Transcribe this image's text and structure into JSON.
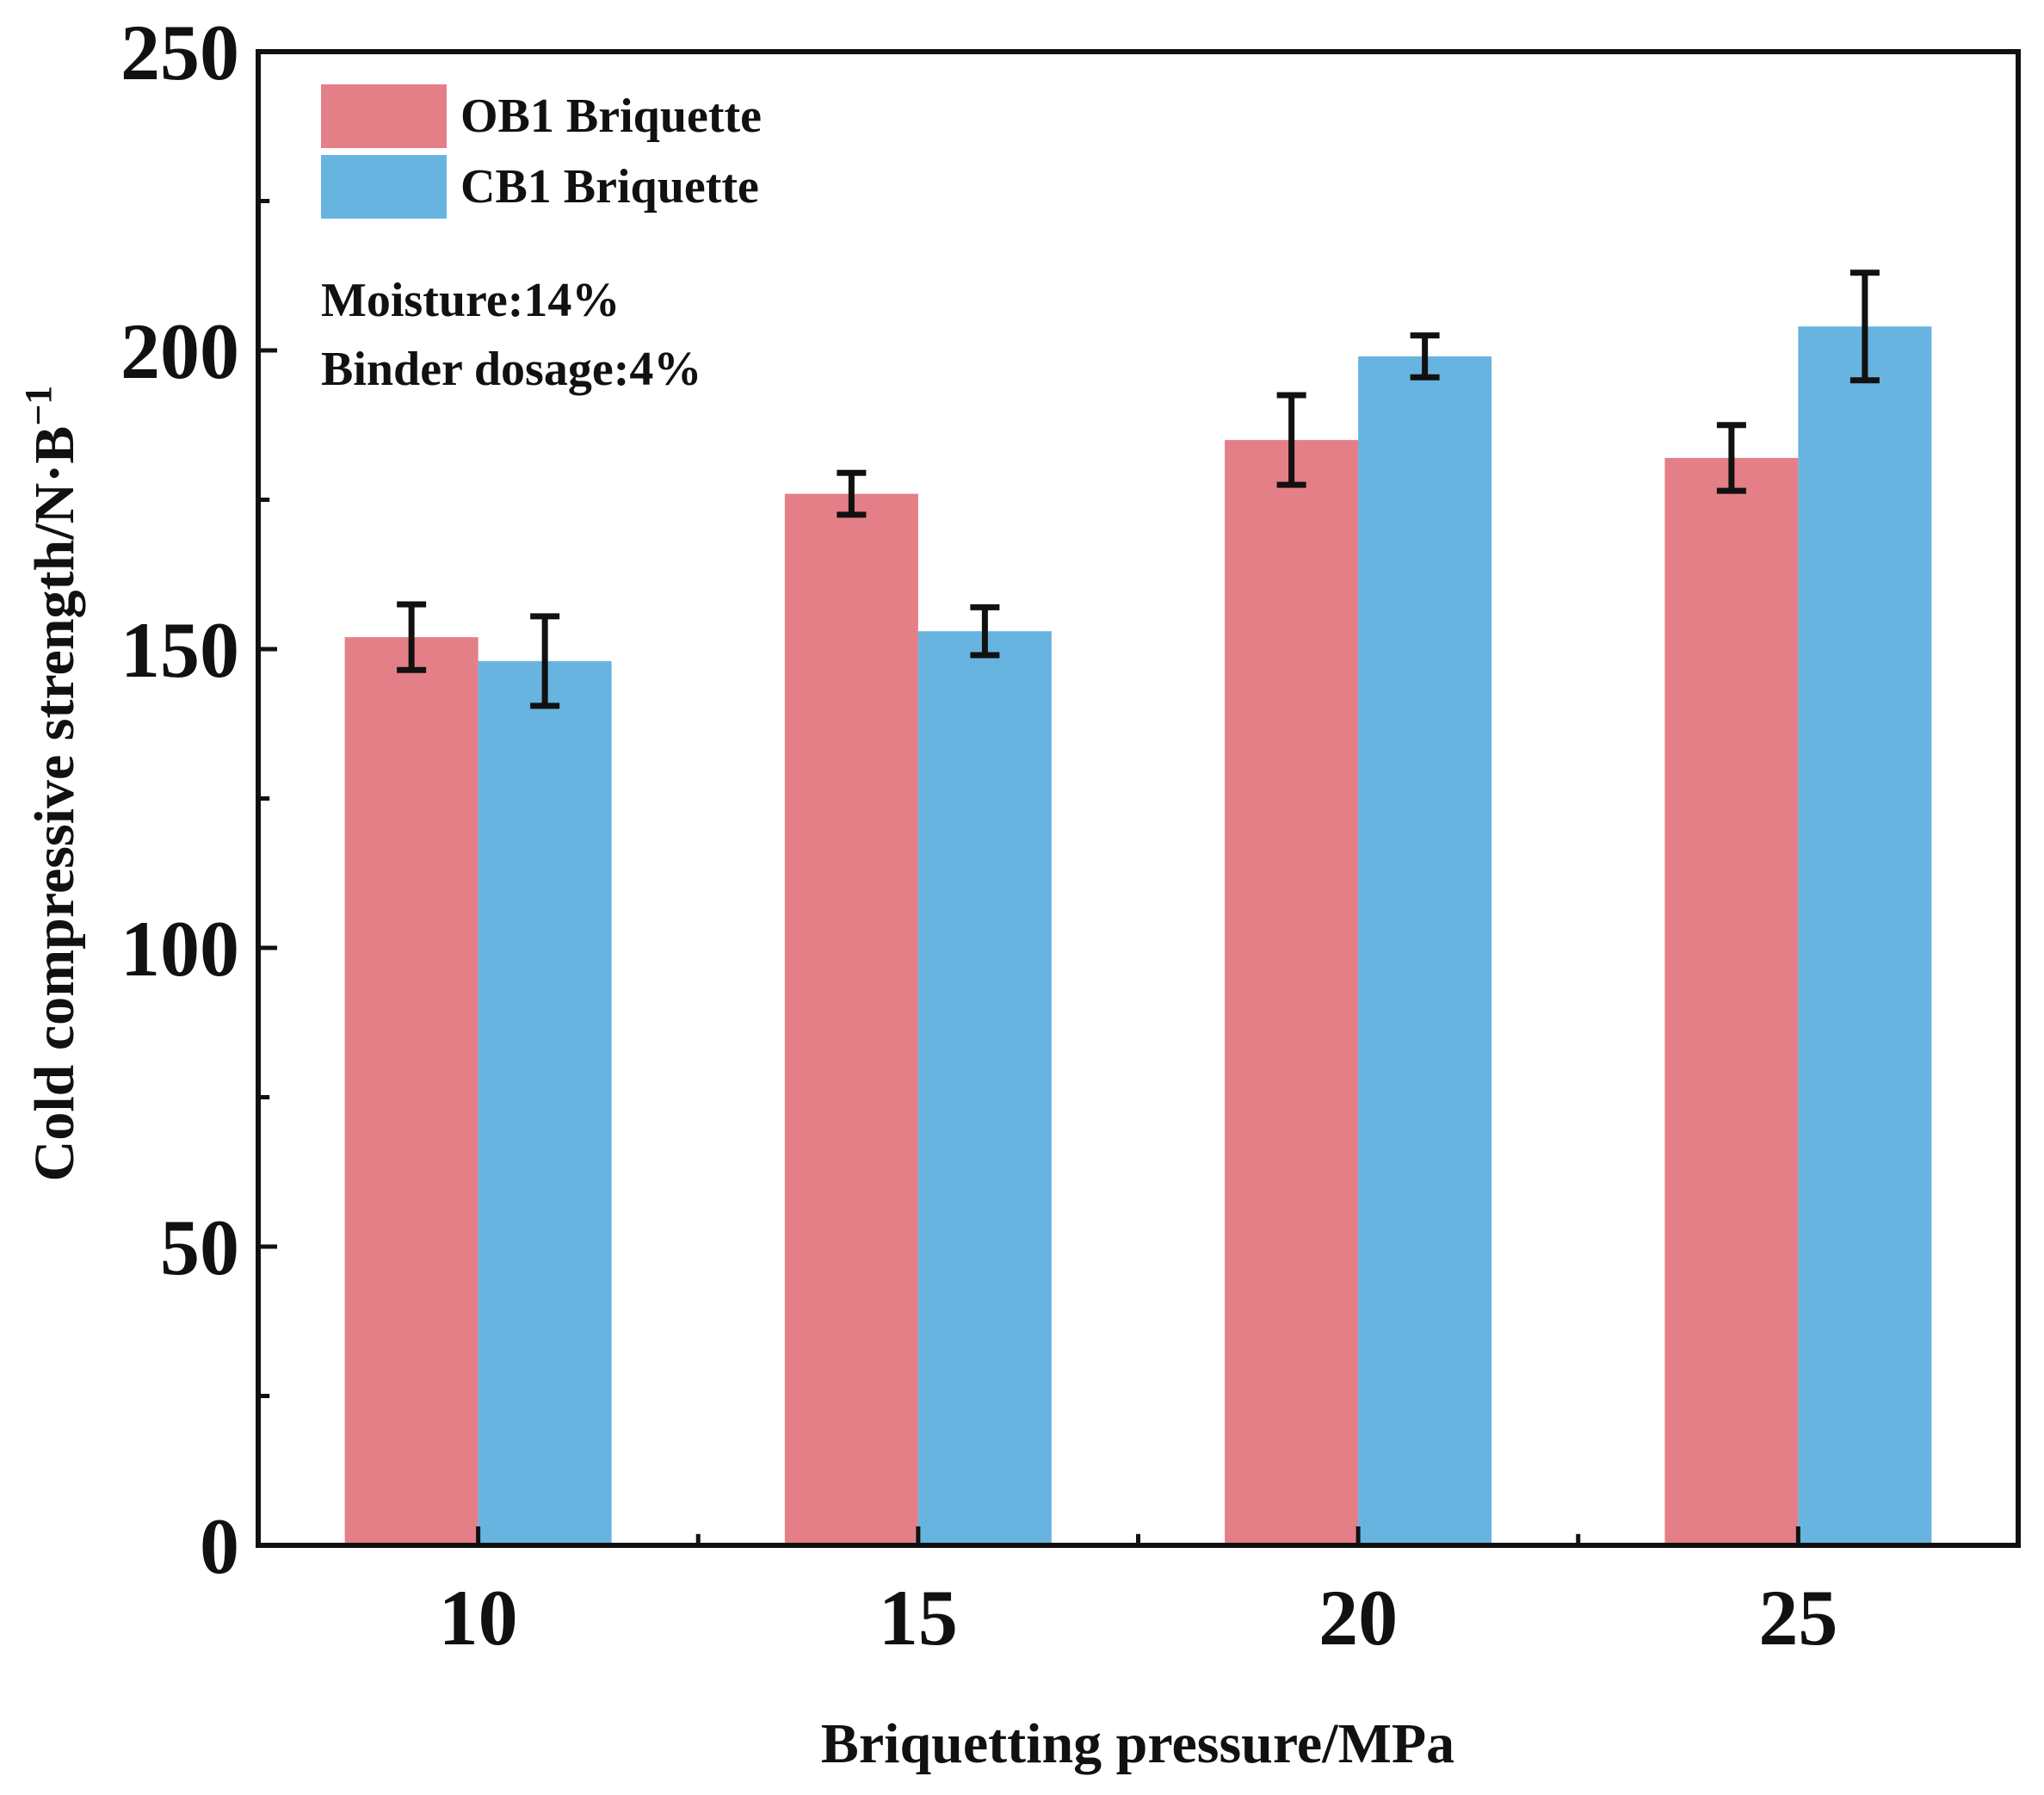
{
  "chart_data": {
    "type": "bar",
    "title": "",
    "xlabel": "Briquetting pressure/MPa",
    "ylabel": "Cold compressive strength/N·B",
    "ylabel_superscript": "−1",
    "categories": [
      "10",
      "15",
      "20",
      "25"
    ],
    "ylim": [
      0,
      250
    ],
    "yticks": [
      "0",
      "50",
      "100",
      "150",
      "200",
      "250"
    ],
    "grid": false,
    "legend_position": "top-left",
    "series": [
      {
        "name": "OB1 Briquette",
        "color": "#E47F88",
        "values": [
          152,
          176,
          185,
          182
        ],
        "errors": [
          5.5,
          3.5,
          7.5,
          5.5
        ]
      },
      {
        "name": "CB1 Briquette",
        "color": "#68B4E0",
        "values": [
          148,
          153,
          199,
          204
        ],
        "errors": [
          7.5,
          4,
          3.5,
          9
        ]
      }
    ],
    "annotations": [
      "Moisture:14%",
      "Binder dosage:4%"
    ]
  }
}
